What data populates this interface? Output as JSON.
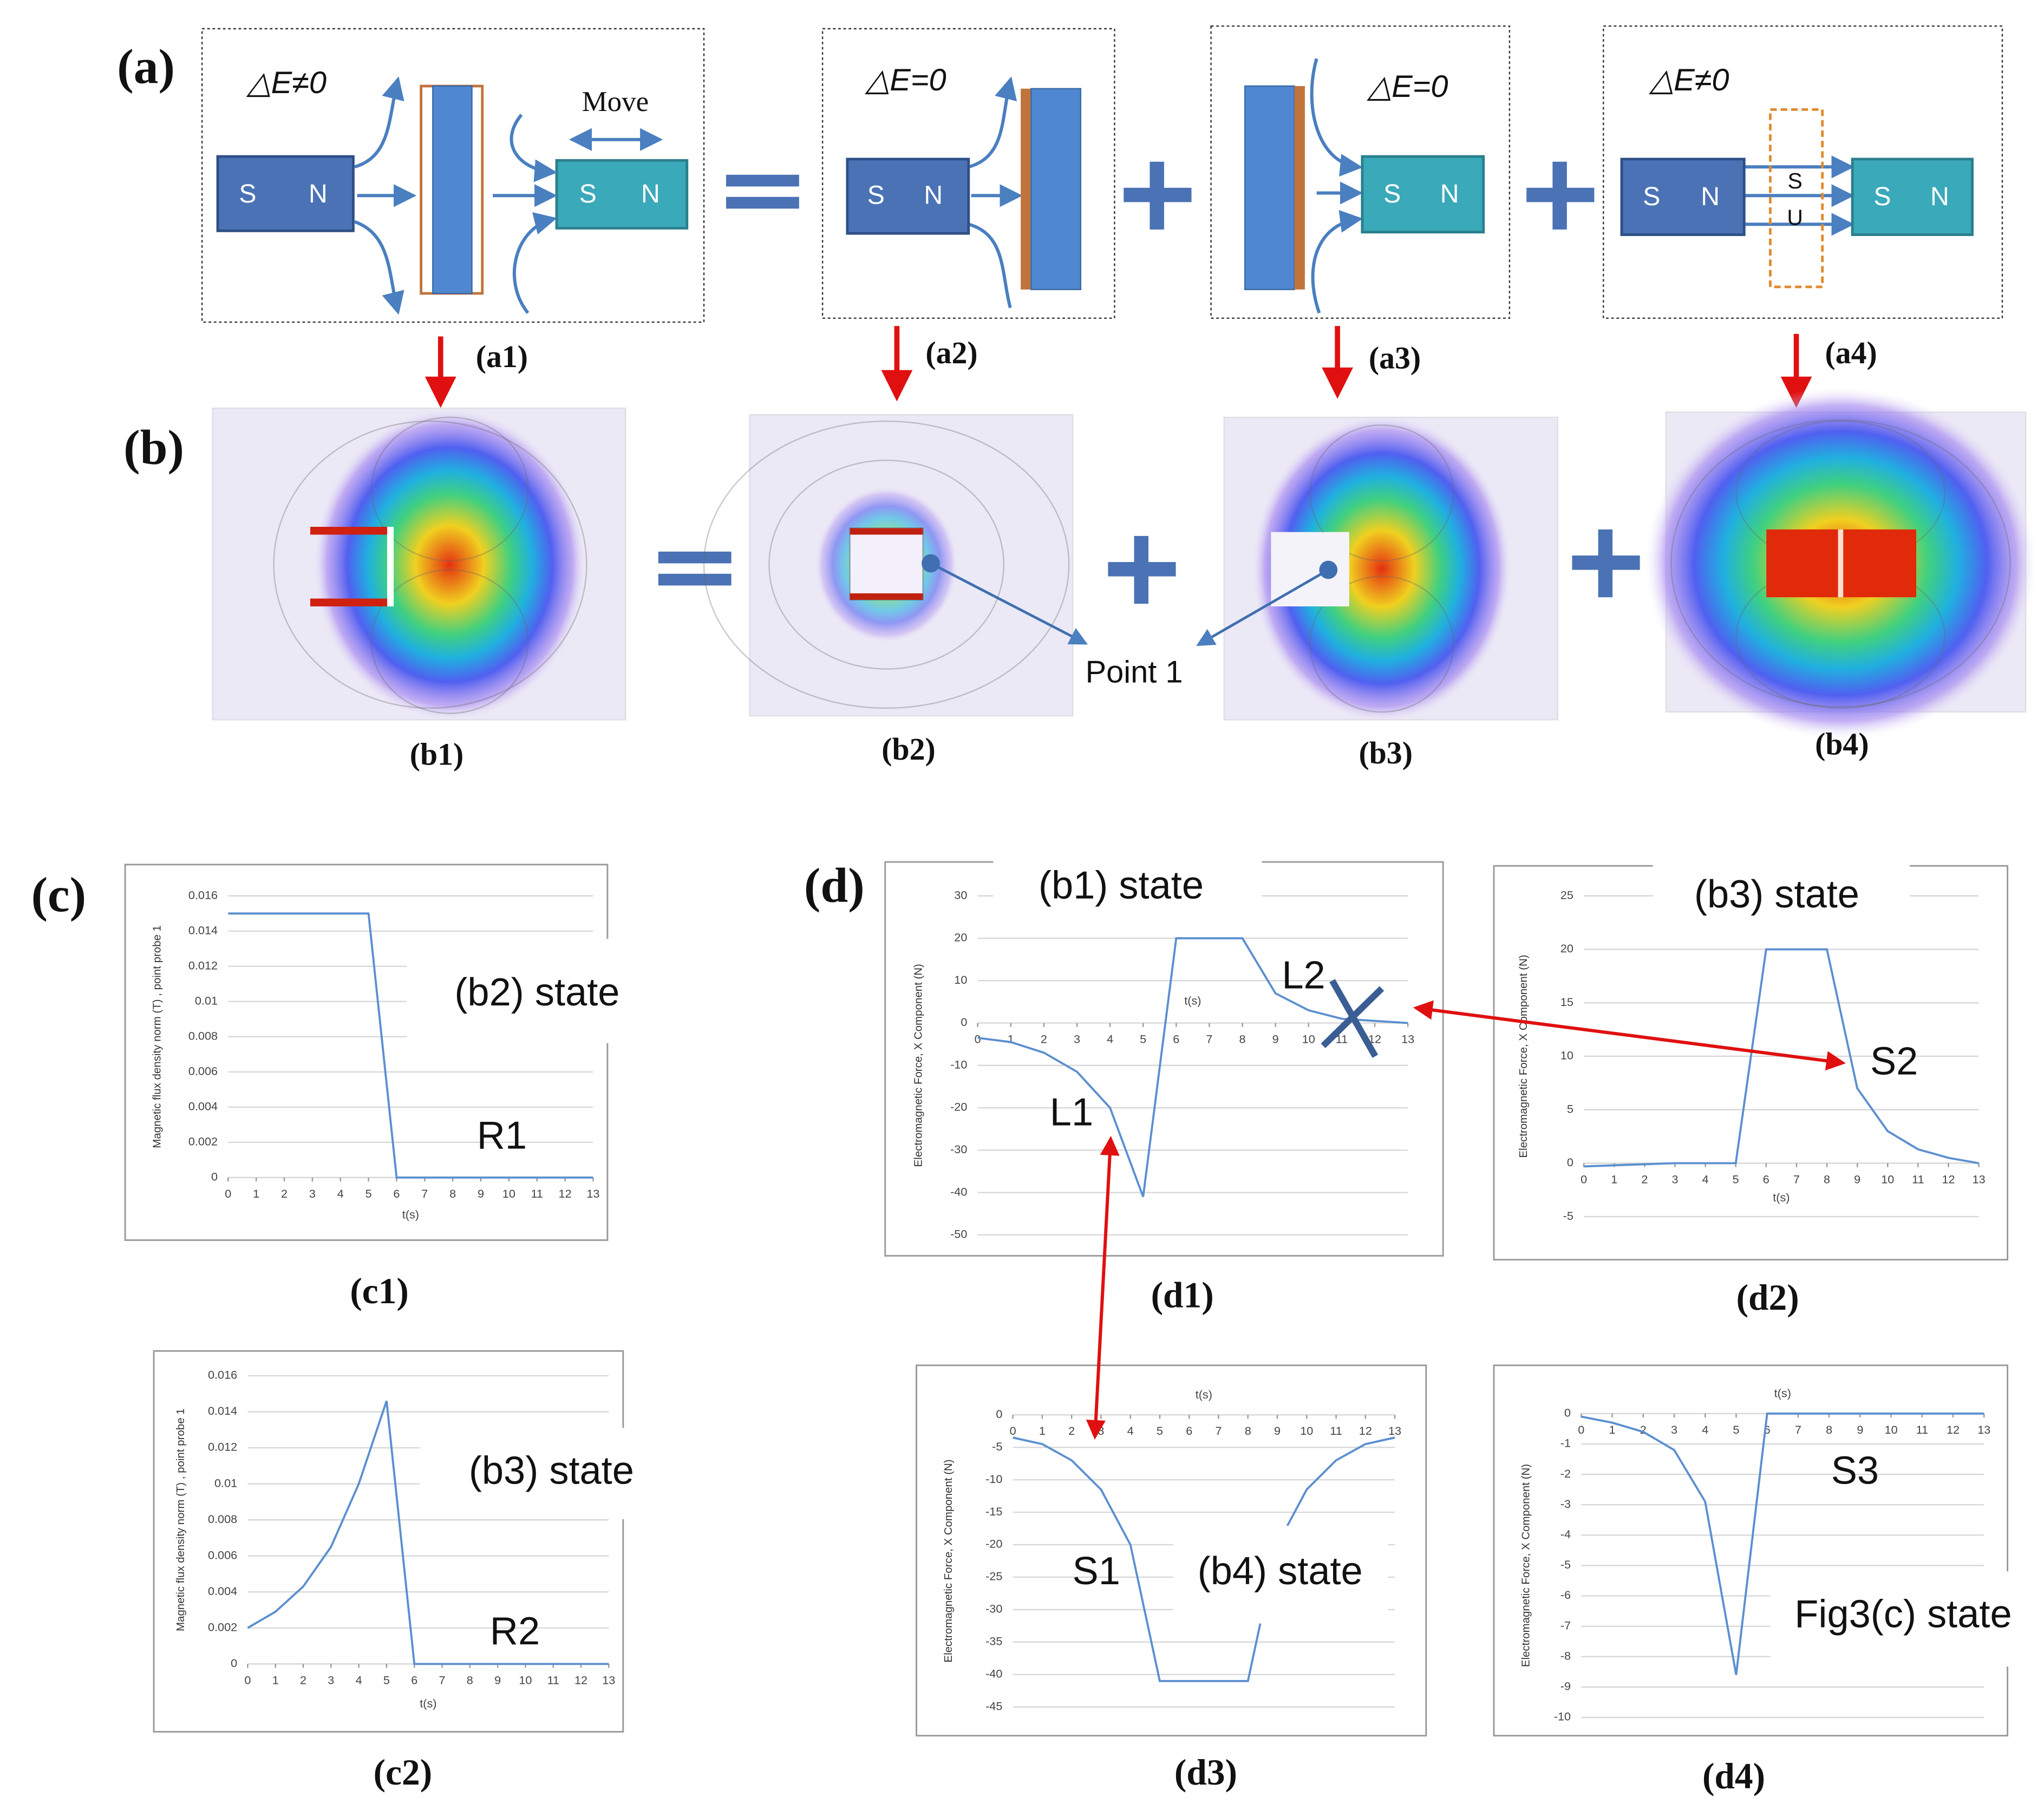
{
  "panel_labels": {
    "a": "(a)",
    "b": "(b)",
    "c": "(c)",
    "d": "(d)"
  },
  "diagram": {
    "a1": {
      "label": "(a1)",
      "energy": "△E≠0",
      "move": "Move",
      "magnet1": [
        "S",
        "N"
      ],
      "magnet2": [
        "S",
        "N"
      ]
    },
    "a2": {
      "label": "(a2)",
      "energy": "△E=0",
      "magnet1": [
        "S",
        "N"
      ]
    },
    "a3": {
      "label": "(a3)",
      "energy": "△E=0",
      "magnet2": [
        "S",
        "N"
      ]
    },
    "a4": {
      "label": "(a4)",
      "energy": "△E≠0",
      "magnet1": [
        "S",
        "N"
      ],
      "magnet2": [
        "S",
        "N"
      ],
      "overlay": [
        "S",
        "U"
      ]
    },
    "b_labels": [
      "(b1)",
      "(b2)",
      "(b3)",
      "(b4)"
    ],
    "point": "Point 1"
  },
  "chart_data": [
    {
      "type": "line",
      "label": "(c1)",
      "ylabel": "Magnetic flux density norm (T) , point probe 1",
      "xlabel": "t(s)",
      "x": [
        0,
        1,
        2,
        3,
        4,
        5,
        6,
        7,
        8,
        9,
        10,
        11,
        12,
        13
      ],
      "values": [
        0.015,
        0.015,
        0.015,
        0.015,
        0.015,
        0.015,
        0,
        0,
        0,
        0,
        0,
        0,
        0,
        0
      ],
      "xlim": [
        0,
        13
      ],
      "ylim": [
        0,
        0.016
      ],
      "xticks": [
        0,
        1,
        2,
        3,
        4,
        5,
        6,
        7,
        8,
        9,
        10,
        11,
        12,
        13
      ],
      "yticks": [
        0,
        0.002,
        0.004,
        0.006,
        0.008,
        0.01,
        0.012,
        0.014,
        0.016
      ],
      "color": "#5b8fd0",
      "grid": true,
      "annotations": [
        "(b2)  state",
        "R1"
      ]
    },
    {
      "type": "line",
      "label": "(c2)",
      "ylabel": "Magnetic flux density norm (T) , point probe 1",
      "xlabel": "t(s)",
      "x": [
        0,
        1,
        2,
        3,
        4,
        5,
        6,
        7,
        8,
        9,
        10,
        11,
        12,
        13
      ],
      "values": [
        0.002,
        0.0029,
        0.0043,
        0.0065,
        0.01,
        0.0146,
        0,
        0,
        0,
        0,
        0,
        0,
        0,
        0
      ],
      "xlim": [
        0,
        13
      ],
      "ylim": [
        0,
        0.016
      ],
      "xticks": [
        0,
        1,
        2,
        3,
        4,
        5,
        6,
        7,
        8,
        9,
        10,
        11,
        12,
        13
      ],
      "yticks": [
        0,
        0.002,
        0.004,
        0.006,
        0.008,
        0.01,
        0.012,
        0.014,
        0.016
      ],
      "color": "#5b8fd0",
      "grid": true,
      "annotations": [
        "(b3)  state",
        "R2"
      ]
    },
    {
      "type": "line",
      "label": "(d1)",
      "ylabel": "Electromagnetic Force, X Component (N)",
      "xlabel": "t(s)",
      "x": [
        0,
        1,
        2,
        3,
        4,
        5,
        6,
        7,
        8,
        9,
        10,
        11,
        12,
        13
      ],
      "values": [
        -3.5,
        -4.5,
        -7,
        -11.5,
        -20,
        -41,
        20,
        20,
        20,
        7,
        3,
        1,
        0.5,
        0
      ],
      "xlim": [
        0,
        13
      ],
      "ylim": [
        -50,
        30
      ],
      "xticks": [
        0,
        1,
        2,
        3,
        4,
        5,
        6,
        7,
        8,
        9,
        10,
        11,
        12,
        13
      ],
      "yticks": [
        -50,
        -40,
        -30,
        -20,
        -10,
        0,
        10,
        20,
        30
      ],
      "color": "#5b8fd0",
      "grid": true,
      "annotations": [
        "(b1)  state",
        "L2",
        "L1"
      ]
    },
    {
      "type": "line",
      "label": "(d2)",
      "ylabel": "Electromagnetic Force, X Component (N)",
      "xlabel": "t(s)",
      "x": [
        0,
        1,
        2,
        3,
        4,
        5,
        6,
        7,
        8,
        9,
        10,
        11,
        12,
        13
      ],
      "values": [
        -0.3,
        -0.2,
        -0.1,
        0,
        0,
        0,
        20,
        20,
        20,
        7,
        3,
        1.3,
        0.5,
        0
      ],
      "xlim": [
        0,
        13
      ],
      "ylim": [
        -5,
        25
      ],
      "xticks": [
        0,
        1,
        2,
        3,
        4,
        5,
        6,
        7,
        8,
        9,
        10,
        11,
        12,
        13
      ],
      "yticks": [
        -5,
        0,
        5,
        10,
        15,
        20,
        25
      ],
      "color": "#5b8fd0",
      "grid": true,
      "annotations": [
        "(b3)  state",
        "S2"
      ]
    },
    {
      "type": "line",
      "label": "(d3)",
      "ylabel": "Electromagnetic Force, X Component (N)",
      "xlabel": "t(s)",
      "x": [
        0,
        1,
        2,
        3,
        4,
        5,
        6,
        7,
        8,
        9,
        10,
        11,
        12,
        13
      ],
      "values": [
        -3.5,
        -4.5,
        -7,
        -11.5,
        -20,
        -41,
        -41,
        -41,
        -41,
        -20,
        -11.5,
        -7,
        -4.5,
        -3.5
      ],
      "xlim": [
        0,
        13
      ],
      "ylim": [
        -45,
        0
      ],
      "xticks": [
        0,
        1,
        2,
        3,
        4,
        5,
        6,
        7,
        8,
        9,
        10,
        11,
        12,
        13
      ],
      "yticks": [
        0,
        -5,
        -10,
        -15,
        -20,
        -25,
        -30,
        -35,
        -40,
        -45
      ],
      "color": "#5b8fd0",
      "grid": true,
      "annotations": [
        "S1",
        "(b4) state"
      ]
    },
    {
      "type": "line",
      "label": "(d4)",
      "ylabel": "Electromagnetic Force, X Component (N)",
      "xlabel": "t(s)",
      "x": [
        0,
        1,
        2,
        3,
        4,
        5,
        6,
        7,
        8,
        9,
        10,
        11,
        12,
        13
      ],
      "values": [
        -0.1,
        -0.3,
        -0.6,
        -1.2,
        -2.9,
        -8.6,
        0,
        0,
        0,
        0,
        0,
        0,
        0,
        0
      ],
      "xlim": [
        0,
        13
      ],
      "ylim": [
        -10,
        0
      ],
      "xticks": [
        0,
        1,
        2,
        3,
        4,
        5,
        6,
        7,
        8,
        9,
        10,
        11,
        12,
        13
      ],
      "yticks": [
        0,
        -1,
        -2,
        -3,
        -4,
        -5,
        -6,
        -7,
        -8,
        -9,
        -10
      ],
      "color": "#5b8fd0",
      "grid": true,
      "annotations": [
        "S3",
        "Fig3(c)  state"
      ]
    }
  ]
}
